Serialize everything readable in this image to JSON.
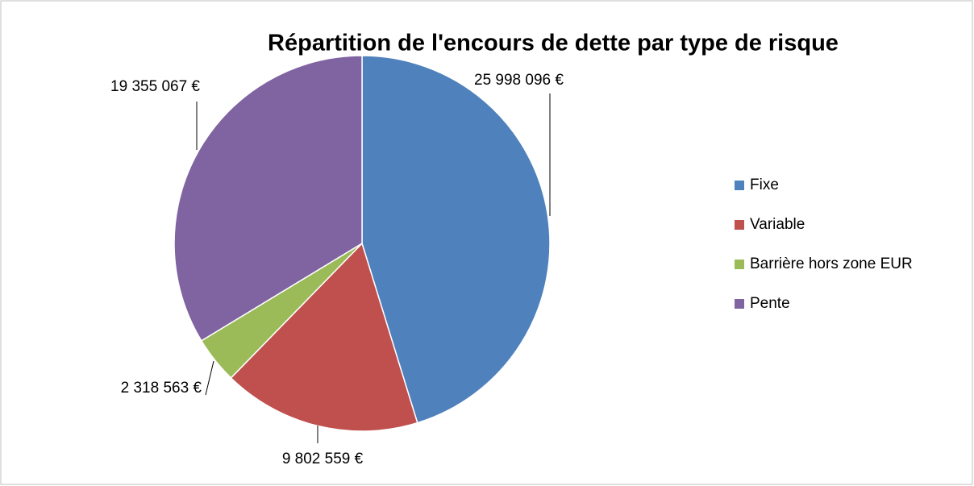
{
  "chart_data": {
    "type": "pie",
    "title": "Répartition de l'encours de dette par type de risque",
    "categories": [
      "Fixe",
      "Variable",
      "Barrière hors zone EUR",
      "Pente"
    ],
    "values": [
      25998096,
      9802559,
      2318563,
      19355067
    ],
    "value_labels": [
      "25 998 096  €",
      "9 802 559  €",
      "2 318 563  €",
      "19 355 067  €"
    ],
    "colors": [
      "#4f81bd",
      "#c0504d",
      "#9bbb59",
      "#8064a2"
    ],
    "legend": "right"
  }
}
